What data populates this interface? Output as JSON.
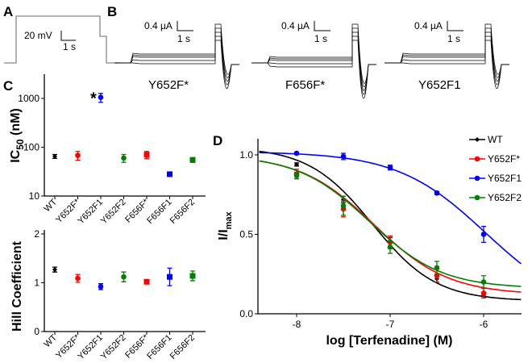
{
  "panels": {
    "a": "A",
    "b": "B",
    "c": "C",
    "d": "D"
  },
  "panel_a": {
    "scale_v": "20 mV",
    "scale_t": "1 s"
  },
  "panel_b": {
    "traces": [
      {
        "label": "Y652F*",
        "scale_i": "0.4 µA",
        "scale_t": "1 s"
      },
      {
        "label": "F656F*",
        "scale_i": "0.4 µA",
        "scale_t": "1 s"
      },
      {
        "label": "Y652F1",
        "scale_i": "0.4 µA",
        "scale_t": "1 s"
      }
    ]
  },
  "chart_data": [
    {
      "type": "scatter",
      "ylabel": "IC50 (nM)",
      "ylabel_main": "IC",
      "ylabel_sub": "50",
      "ylabel_unit": " (nM)",
      "yscale": "log",
      "ylim": [
        10,
        2000
      ],
      "yticks": [
        "10",
        "100",
        "1000"
      ],
      "categories": [
        "WT",
        "Y652F*",
        "Y652F1",
        "Y652F2",
        "F656F*",
        "F656F1",
        "F656F2"
      ],
      "values": [
        65,
        68,
        1050,
        60,
        70,
        28,
        55
      ],
      "errors": [
        6,
        14,
        220,
        11,
        12,
        2,
        6
      ],
      "colors": [
        "#000000",
        "#ff0000",
        "#0000ff",
        "#008000",
        "#ff0000",
        "#0000ff",
        "#008000"
      ],
      "markers": [
        "diamond",
        "circle",
        "circle",
        "circle",
        "square",
        "square",
        "square"
      ],
      "annotation": "*"
    },
    {
      "type": "scatter",
      "ylabel": "Hill Coefficient",
      "ylim": [
        0,
        2
      ],
      "yticks": [
        "0",
        "1",
        "2"
      ],
      "categories": [
        "WT",
        "Y652F*",
        "Y652F1",
        "Y652F2",
        "F656F*",
        "F656F1",
        "F656F2"
      ],
      "values": [
        1.27,
        1.09,
        0.92,
        1.12,
        1.02,
        1.12,
        1.14
      ],
      "errors": [
        0.05,
        0.08,
        0.06,
        0.1,
        0.03,
        0.18,
        0.1
      ],
      "colors": [
        "#000000",
        "#ff0000",
        "#0000ff",
        "#008000",
        "#ff0000",
        "#0000ff",
        "#008000"
      ],
      "markers": [
        "diamond",
        "circle",
        "circle",
        "circle",
        "square",
        "square",
        "square"
      ]
    },
    {
      "type": "line",
      "xlabel": "log [Terfenadine] (M)",
      "ylabel_main": "I/I",
      "ylabel_sub": "max",
      "xlim": [
        -8.4,
        -5.6
      ],
      "ylim": [
        0,
        1.1
      ],
      "xticks": [
        "-8",
        "-7",
        "-6"
      ],
      "yticks": [
        "0.0",
        "0.5",
        "1.0"
      ],
      "legend": "top-right",
      "x": [
        -8,
        -7.5,
        -7,
        -6.5,
        -6
      ],
      "series": [
        {
          "name": "WT",
          "color": "#000000",
          "marker": "diamond",
          "values": [
            0.94,
            0.72,
            0.45,
            0.22,
            0.12
          ],
          "errors": [
            0.01,
            0.02,
            0.03,
            0.02,
            0.01
          ],
          "fit": {
            "top": 1.05,
            "bottom": 0.08,
            "logIC50": -7.19,
            "hill": 1.27
          }
        },
        {
          "name": "Y652F*",
          "color": "#ff0000",
          "marker": "circle",
          "values": [
            0.88,
            0.66,
            0.45,
            0.24,
            0.13
          ],
          "errors": [
            0.03,
            0.05,
            0.04,
            0.04,
            0.03
          ],
          "fit": {
            "top": 1.0,
            "bottom": 0.12,
            "logIC50": -7.17,
            "hill": 1.09
          }
        },
        {
          "name": "Y652F1",
          "color": "#0000ff",
          "marker": "circle",
          "values": [
            1.01,
            0.99,
            0.92,
            0.76,
            0.5
          ],
          "errors": [
            0.005,
            0.02,
            0.015,
            0.01,
            0.05
          ],
          "fit": {
            "top": 1.02,
            "bottom": 0.0,
            "logIC50": -5.98,
            "hill": 0.92
          }
        },
        {
          "name": "Y652F2",
          "color": "#008000",
          "marker": "circle",
          "values": [
            0.87,
            0.68,
            0.42,
            0.29,
            0.2
          ],
          "errors": [
            0.02,
            0.06,
            0.04,
            0.04,
            0.04
          ],
          "fit": {
            "top": 1.0,
            "bottom": 0.16,
            "logIC50": -7.22,
            "hill": 1.12
          }
        }
      ]
    }
  ]
}
